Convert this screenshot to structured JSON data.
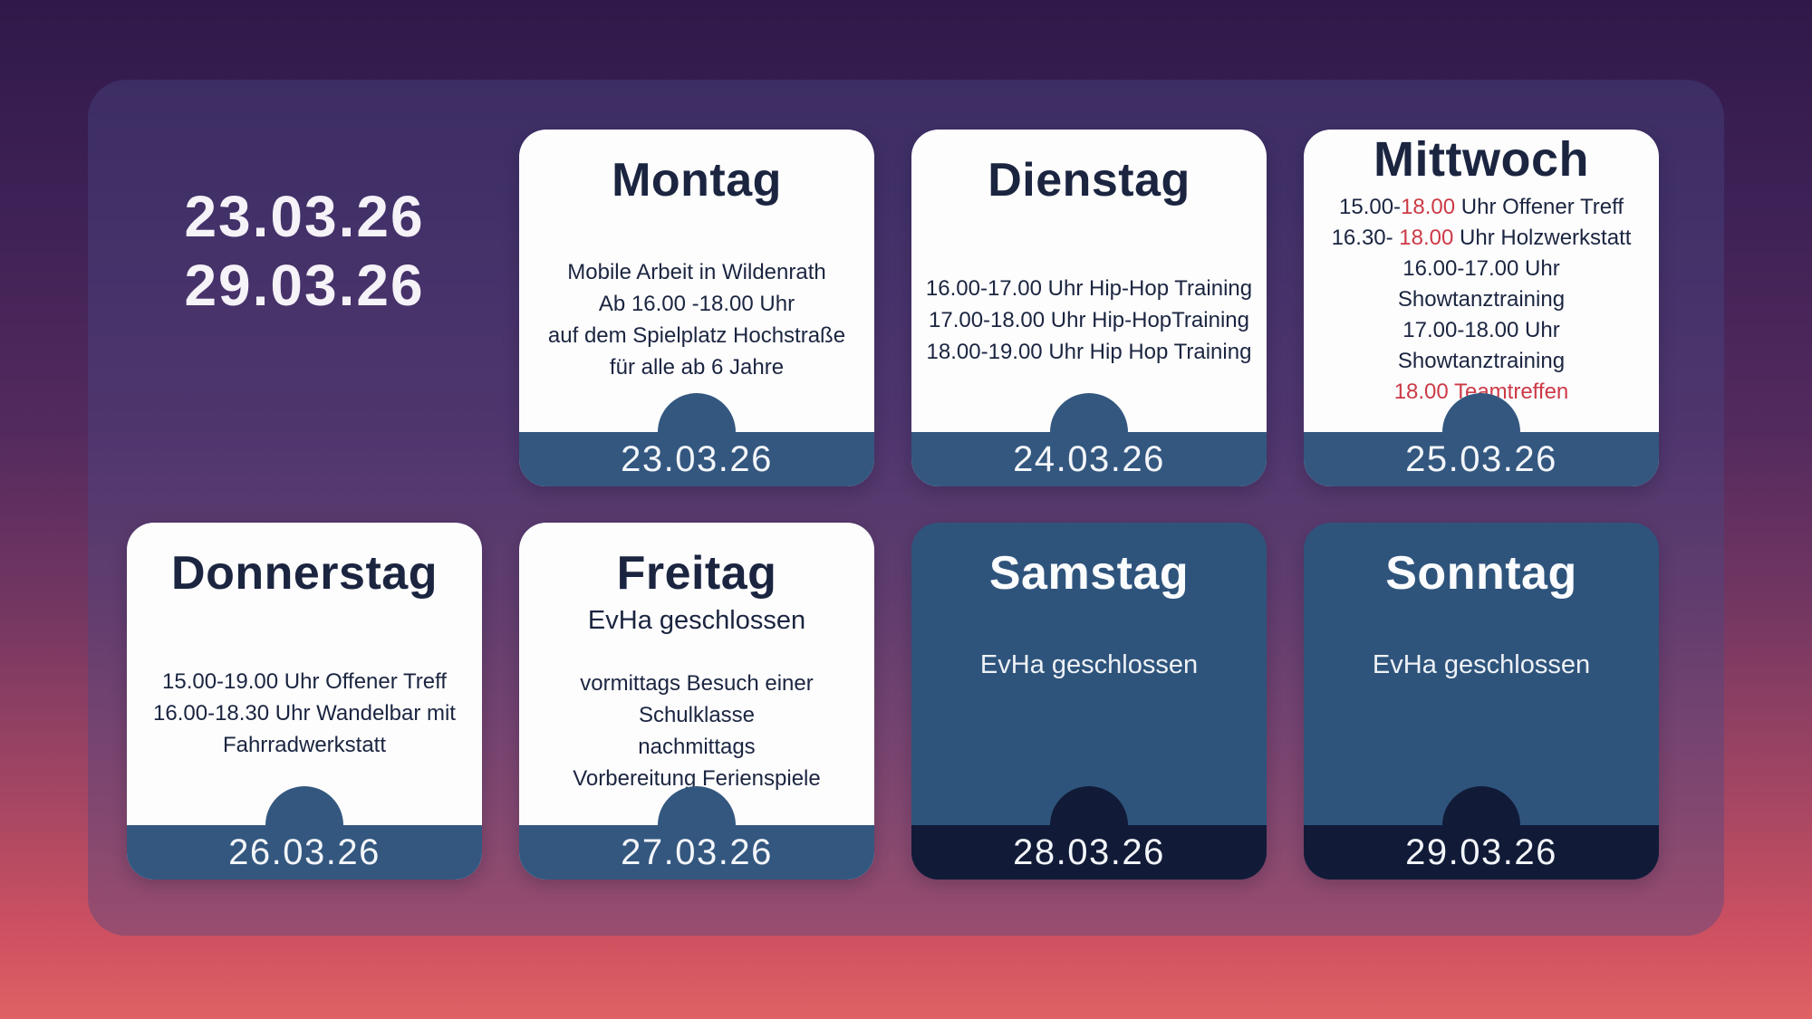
{
  "week": {
    "start": "23.03.26",
    "end": "29.03.26"
  },
  "colors": {
    "accent_red": "#cc3a46",
    "footer_blue": "#34577f",
    "closed_card_blue": "#2f547c",
    "closed_footer_navy": "#111b38",
    "card_text_navy": "#1b2540"
  },
  "cards": [
    {
      "day": "Montag",
      "date": "23.03.26",
      "variant": "white",
      "layout": "center",
      "lines": [
        [
          {
            "text": "Mobile Arbeit in Wildenrath"
          }
        ],
        [
          {
            "text": "Ab 16.00 -18.00 Uhr"
          }
        ],
        [
          {
            "text": "auf dem Spielplatz Hochstraße"
          }
        ],
        [
          {
            "text": "für alle ab 6 Jahre"
          }
        ]
      ]
    },
    {
      "day": "Dienstag",
      "date": "24.03.26",
      "variant": "white",
      "layout": "center",
      "lines": [
        [
          {
            "text": "16.00-17.00 Uhr Hip-Hop Training"
          }
        ],
        [
          {
            "text": "17.00-18.00 Uhr Hip-HopTraining"
          }
        ],
        [
          {
            "text": "18.00-19.00 Uhr Hip Hop Training"
          }
        ]
      ]
    },
    {
      "day": "Mittwoch",
      "date": "25.03.26",
      "variant": "white",
      "layout": "top",
      "lines": [
        [
          {
            "text": "15.00-"
          },
          {
            "text": "18.00",
            "red": true
          },
          {
            "text": " Uhr Offener Treff"
          }
        ],
        [
          {
            "text": "16.30- "
          },
          {
            "text": "18.00",
            "red": true
          },
          {
            "text": " Uhr Holzwerkstatt"
          }
        ],
        [
          {
            "text": "16.00-17.00 Uhr"
          }
        ],
        [
          {
            "text": "Showtanztraining"
          }
        ],
        [
          {
            "text": "17.00-18.00 Uhr"
          }
        ],
        [
          {
            "text": "Showtanztraining"
          }
        ],
        [
          {
            "text": "18.00 Teamtreffen",
            "red": true
          }
        ]
      ]
    },
    {
      "day": "Donnerstag",
      "date": "26.03.26",
      "variant": "white",
      "layout": "center",
      "lines": [
        [
          {
            "text": "15.00-19.00 Uhr Offener Treff"
          }
        ],
        [
          {
            "text": "16.00-18.30 Uhr Wandelbar mit"
          }
        ],
        [
          {
            "text": "Fahrradwerkstatt"
          }
        ]
      ]
    },
    {
      "day": "Freitag",
      "date": "27.03.26",
      "variant": "white",
      "layout": "sub",
      "subtitle": "EvHa geschlossen",
      "lines": [
        [
          {
            "text": "vormittags Besuch einer"
          }
        ],
        [
          {
            "text": "Schulklasse"
          }
        ],
        [
          {
            "text": "nachmittags"
          }
        ],
        [
          {
            "text": "Vorbereitung Ferienspiele"
          }
        ]
      ]
    },
    {
      "day": "Samstag",
      "date": "28.03.26",
      "variant": "blue",
      "layout": "closed",
      "lines": [
        [
          {
            "text": "EvHa geschlossen"
          }
        ]
      ]
    },
    {
      "day": "Sonntag",
      "date": "29.03.26",
      "variant": "blue",
      "layout": "closed",
      "lines": [
        [
          {
            "text": "EvHa geschlossen"
          }
        ]
      ]
    }
  ]
}
